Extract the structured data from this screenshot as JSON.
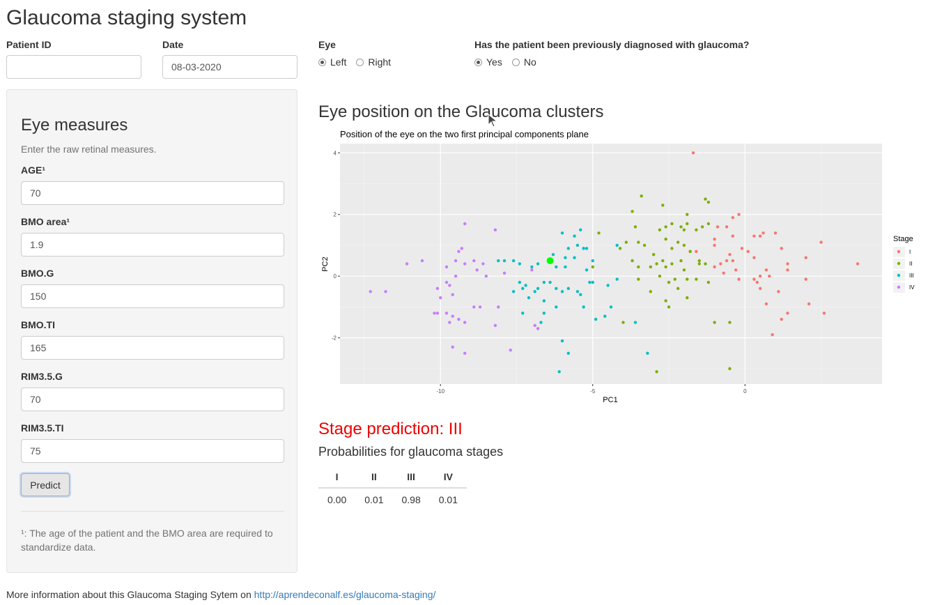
{
  "app": {
    "title": "Glaucoma staging system"
  },
  "patient": {
    "id_label": "Patient ID",
    "id_value": "",
    "date_label": "Date",
    "date_value": "08-03-2020",
    "eye_label": "Eye",
    "eye_options": [
      "Left",
      "Right"
    ],
    "eye_selected": "Left",
    "prev_label": "Has the patient been previously diagnosed with glaucoma?",
    "prev_options": [
      "Yes",
      "No"
    ],
    "prev_selected": "Yes"
  },
  "measures": {
    "title": "Eye measures",
    "help": "Enter the raw retinal measures.",
    "fields": [
      {
        "label": "AGE¹",
        "value": "70"
      },
      {
        "label": "BMO area¹",
        "value": "1.9"
      },
      {
        "label": "BMO.G",
        "value": "150"
      },
      {
        "label": "BMO.TI",
        "value": "165"
      },
      {
        "label": "RIM3.5.G",
        "value": "70"
      },
      {
        "label": "RIM3.5.TI",
        "value": "75"
      }
    ],
    "predict_label": "Predict",
    "footnote_line1": "¹: The age of the patient and the BMO area are required to",
    "footnote_line2": "standardize data."
  },
  "plot_section": {
    "title": "Eye position on the Glaucoma clusters"
  },
  "chart_data": {
    "type": "scatter",
    "title": "Position of the eye on the two first principal components plane",
    "xlabel": "PC1",
    "ylabel": "PC2",
    "xlim": [
      -13.3,
      4.5
    ],
    "ylim": [
      -3.5,
      4.3
    ],
    "xticks": [
      -10,
      -5,
      0
    ],
    "yticks": [
      -2,
      0,
      2,
      4
    ],
    "grid": true,
    "legend_title": "Stage",
    "legend_position": "right",
    "series": [
      {
        "name": "I",
        "color": "#f8766d",
        "points": [
          [
            -1.7,
            4.0
          ],
          [
            0.6,
            1.4
          ],
          [
            -0.6,
            1.6
          ],
          [
            -1.0,
            1.0
          ],
          [
            -0.4,
            1.3
          ],
          [
            -0.5,
            0.7
          ],
          [
            -1.0,
            0.3
          ],
          [
            -0.7,
            0.1
          ],
          [
            -0.4,
            0.5
          ],
          [
            -0.3,
            0.2
          ],
          [
            -0.2,
            -0.1
          ],
          [
            0.1,
            0.8
          ],
          [
            0.3,
            1.3
          ],
          [
            0.5,
            1.3
          ],
          [
            0.7,
            0.2
          ],
          [
            0.3,
            0.6
          ],
          [
            0.4,
            -0.2
          ],
          [
            0.5,
            -0.4
          ],
          [
            0.8,
            0.0
          ],
          [
            1.2,
            0.9
          ],
          [
            1.4,
            0.4
          ],
          [
            1.0,
            1.4
          ],
          [
            1.4,
            0.2
          ],
          [
            2.0,
            0.6
          ],
          [
            2.5,
            1.1
          ],
          [
            1.1,
            -0.5
          ],
          [
            1.2,
            -1.4
          ],
          [
            1.4,
            -1.2
          ],
          [
            0.9,
            -1.9
          ],
          [
            0.7,
            -0.9
          ],
          [
            2.1,
            -0.9
          ],
          [
            2.6,
            -1.2
          ],
          [
            3.7,
            0.4
          ],
          [
            2.0,
            -0.1
          ],
          [
            -0.2,
            2.0
          ],
          [
            -0.4,
            1.9
          ],
          [
            -0.9,
            1.6
          ],
          [
            -1.0,
            1.2
          ],
          [
            -0.6,
            0.5
          ],
          [
            -1.6,
            0.8
          ],
          [
            -1.8,
            0.8
          ],
          [
            -0.8,
            0.4
          ],
          [
            -0.1,
            0.9
          ],
          [
            0.5,
            0.0
          ],
          [
            0.3,
            -0.1
          ]
        ]
      },
      {
        "name": "II",
        "color": "#7cae00",
        "points": [
          [
            -3.4,
            2.6
          ],
          [
            -1.3,
            2.5
          ],
          [
            -1.2,
            2.4
          ],
          [
            -2.7,
            2.3
          ],
          [
            -1.9,
            2.0
          ],
          [
            -3.7,
            2.1
          ],
          [
            -3.6,
            1.6
          ],
          [
            -2.6,
            1.6
          ],
          [
            -2.4,
            1.7
          ],
          [
            -2.1,
            1.6
          ],
          [
            -1.9,
            1.7
          ],
          [
            -2.0,
            1.5
          ],
          [
            -1.2,
            1.7
          ],
          [
            -1.4,
            1.6
          ],
          [
            -1.6,
            1.5
          ],
          [
            -3.5,
            1.1
          ],
          [
            -2.8,
            1.5
          ],
          [
            -2.6,
            1.2
          ],
          [
            -3.3,
            1.0
          ],
          [
            -3.0,
            0.7
          ],
          [
            -2.7,
            0.5
          ],
          [
            -2.4,
            0.9
          ],
          [
            -2.2,
            1.1
          ],
          [
            -2.0,
            1.0
          ],
          [
            -3.9,
            1.1
          ],
          [
            -4.1,
            0.9
          ],
          [
            -3.5,
            0.3
          ],
          [
            -3.1,
            0.3
          ],
          [
            -2.9,
            0.4
          ],
          [
            -2.6,
            0.3
          ],
          [
            -2.4,
            0.4
          ],
          [
            -2.1,
            0.5
          ],
          [
            -1.8,
            0.8
          ],
          [
            -1.5,
            0.5
          ],
          [
            -1.3,
            0.4
          ],
          [
            -2.8,
            0.0
          ],
          [
            -2.5,
            -0.2
          ],
          [
            -2.3,
            -0.1
          ],
          [
            -2.0,
            0.2
          ],
          [
            -1.6,
            -0.1
          ],
          [
            -3.5,
            -0.1
          ],
          [
            -3.1,
            -0.5
          ],
          [
            -2.6,
            -0.8
          ],
          [
            -2.5,
            -1.0
          ],
          [
            -2.2,
            -0.4
          ],
          [
            -1.9,
            -0.7
          ],
          [
            -1.2,
            -0.2
          ],
          [
            -4.0,
            -1.5
          ],
          [
            -2.9,
            -3.1
          ],
          [
            -1.0,
            -1.5
          ],
          [
            -0.5,
            -1.5
          ],
          [
            -0.5,
            -3.0
          ],
          [
            -4.8,
            1.4
          ],
          [
            -5.0,
            0.3
          ],
          [
            -1.5,
            0.4
          ],
          [
            -1.9,
            -0.1
          ],
          [
            -3.7,
            0.5
          ]
        ]
      },
      {
        "name": "III",
        "color": "#00bfc4",
        "points": [
          [
            -5.4,
            1.5
          ],
          [
            -5.6,
            1.3
          ],
          [
            -6.0,
            1.4
          ],
          [
            -5.5,
            1.0
          ],
          [
            -5.8,
            0.9
          ],
          [
            -5.3,
            0.9
          ],
          [
            -5.2,
            0.9
          ],
          [
            -4.2,
            1.0
          ],
          [
            -5.6,
            0.6
          ],
          [
            -5.0,
            0.5
          ],
          [
            -6.3,
            0.7
          ],
          [
            -5.9,
            0.6
          ],
          [
            -7.4,
            0.4
          ],
          [
            -7.6,
            0.5
          ],
          [
            -7.9,
            0.5
          ],
          [
            -8.1,
            0.5
          ],
          [
            -6.8,
            0.4
          ],
          [
            -6.2,
            0.3
          ],
          [
            -5.0,
            -0.2
          ],
          [
            -4.5,
            -0.3
          ],
          [
            -4.2,
            -0.1
          ],
          [
            -5.2,
            0.2
          ],
          [
            -5.9,
            0.3
          ],
          [
            -7.0,
            0.3
          ],
          [
            -7.4,
            -0.2
          ],
          [
            -7.2,
            -0.3
          ],
          [
            -6.8,
            -0.4
          ],
          [
            -6.6,
            -0.2
          ],
          [
            -6.9,
            -0.5
          ],
          [
            -7.1,
            -0.7
          ],
          [
            -7.3,
            -0.4
          ],
          [
            -7.6,
            -0.5
          ],
          [
            -6.6,
            -1.2
          ],
          [
            -6.7,
            -1.5
          ],
          [
            -6.2,
            -0.4
          ],
          [
            -6.0,
            -0.5
          ],
          [
            -5.8,
            -0.4
          ],
          [
            -5.5,
            -0.5
          ],
          [
            -5.1,
            -0.2
          ],
          [
            -5.3,
            -1.0
          ],
          [
            -6.2,
            -1.0
          ],
          [
            -6.4,
            -0.2
          ],
          [
            -7.3,
            -1.2
          ],
          [
            -6.6,
            -0.8
          ],
          [
            -4.9,
            -1.4
          ],
          [
            -4.6,
            -1.3
          ],
          [
            -4.4,
            -1.0
          ],
          [
            -6.0,
            -2.1
          ],
          [
            -5.8,
            -2.5
          ],
          [
            -6.1,
            -3.1
          ],
          [
            -3.2,
            -2.5
          ],
          [
            -3.6,
            -1.5
          ],
          [
            -5.4,
            -0.6
          ]
        ]
      },
      {
        "name": "IV",
        "color": "#c77cff",
        "points": [
          [
            -9.2,
            1.7
          ],
          [
            -8.2,
            1.5
          ],
          [
            -9.3,
            0.9
          ],
          [
            -9.4,
            0.8
          ],
          [
            -9.5,
            0.5
          ],
          [
            -9.8,
            0.3
          ],
          [
            -10.6,
            0.5
          ],
          [
            -11.1,
            0.4
          ],
          [
            -9.2,
            0.4
          ],
          [
            -8.9,
            0.5
          ],
          [
            -8.6,
            0.4
          ],
          [
            -8.8,
            0.2
          ],
          [
            -8.5,
            0.0
          ],
          [
            -9.5,
            0.0
          ],
          [
            -9.8,
            -0.2
          ],
          [
            -10.1,
            -0.4
          ],
          [
            -9.7,
            -0.3
          ],
          [
            -9.6,
            -0.6
          ],
          [
            -10.0,
            -0.7
          ],
          [
            -9.8,
            -1.2
          ],
          [
            -10.2,
            -1.2
          ],
          [
            -9.6,
            -1.3
          ],
          [
            -9.4,
            -1.4
          ],
          [
            -8.9,
            -1.0
          ],
          [
            -8.7,
            -1.0
          ],
          [
            -8.1,
            -1.0
          ],
          [
            -9.7,
            -1.5
          ],
          [
            -9.2,
            -1.5
          ],
          [
            -8.2,
            -1.6
          ],
          [
            -7.7,
            -2.4
          ],
          [
            -9.6,
            -2.3
          ],
          [
            -9.2,
            -2.5
          ],
          [
            -12.3,
            -0.5
          ],
          [
            -11.8,
            -0.5
          ],
          [
            -10.1,
            -1.2
          ],
          [
            -6.9,
            -1.6
          ],
          [
            -6.8,
            -1.7
          ],
          [
            -7.0,
            0.2
          ],
          [
            -7.9,
            0.1
          ]
        ]
      }
    ],
    "highlight": {
      "x": -6.4,
      "y": 0.5,
      "color": "#00ff00"
    }
  },
  "prediction": {
    "text": "Stage prediction: III",
    "prob_title": "Probabilities for glaucoma stages",
    "headers": [
      "I",
      "II",
      "III",
      "IV"
    ],
    "values": [
      "0.00",
      "0.01",
      "0.98",
      "0.01"
    ]
  },
  "footer": {
    "text": "More information about this Glaucoma Staging Sytem on ",
    "link": "http://aprendeconalf.es/glaucoma-staging/"
  }
}
